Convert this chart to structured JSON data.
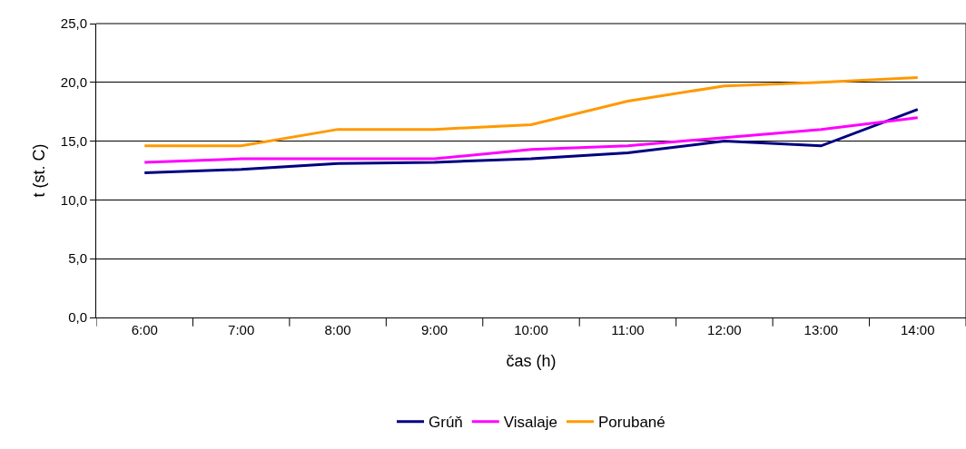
{
  "chart_data": {
    "type": "line",
    "xlabel": "čas (h)",
    "ylabel": "t (st. C)",
    "categories": [
      "6:00",
      "7:00",
      "8:00",
      "9:00",
      "10:00",
      "11:00",
      "12:00",
      "13:00",
      "14:00"
    ],
    "series": [
      {
        "name": "Grúň",
        "color": "#000080",
        "values": [
          12.3,
          12.6,
          13.1,
          13.2,
          13.5,
          14.0,
          15.0,
          14.6,
          17.7
        ]
      },
      {
        "name": "Visalaje",
        "color": "#ff00ff",
        "values": [
          13.2,
          13.5,
          13.5,
          13.5,
          14.3,
          14.6,
          15.3,
          16.0,
          17.0
        ]
      },
      {
        "name": "Porubané",
        "color": "#ff9900",
        "values": [
          14.6,
          14.6,
          16.0,
          16.0,
          16.4,
          18.4,
          19.7,
          20.0,
          20.4
        ]
      }
    ],
    "ylim": [
      0,
      25
    ],
    "yticks": [
      {
        "value": 0,
        "label": "0,0"
      },
      {
        "value": 5,
        "label": "5,0"
      },
      {
        "value": 10,
        "label": "10,0"
      },
      {
        "value": 15,
        "label": "15,0"
      },
      {
        "value": 20,
        "label": "20,0"
      },
      {
        "value": 25,
        "label": "25,0"
      }
    ],
    "grid": "y",
    "legend": "bottom",
    "marker": "none",
    "line_style": "solid"
  }
}
